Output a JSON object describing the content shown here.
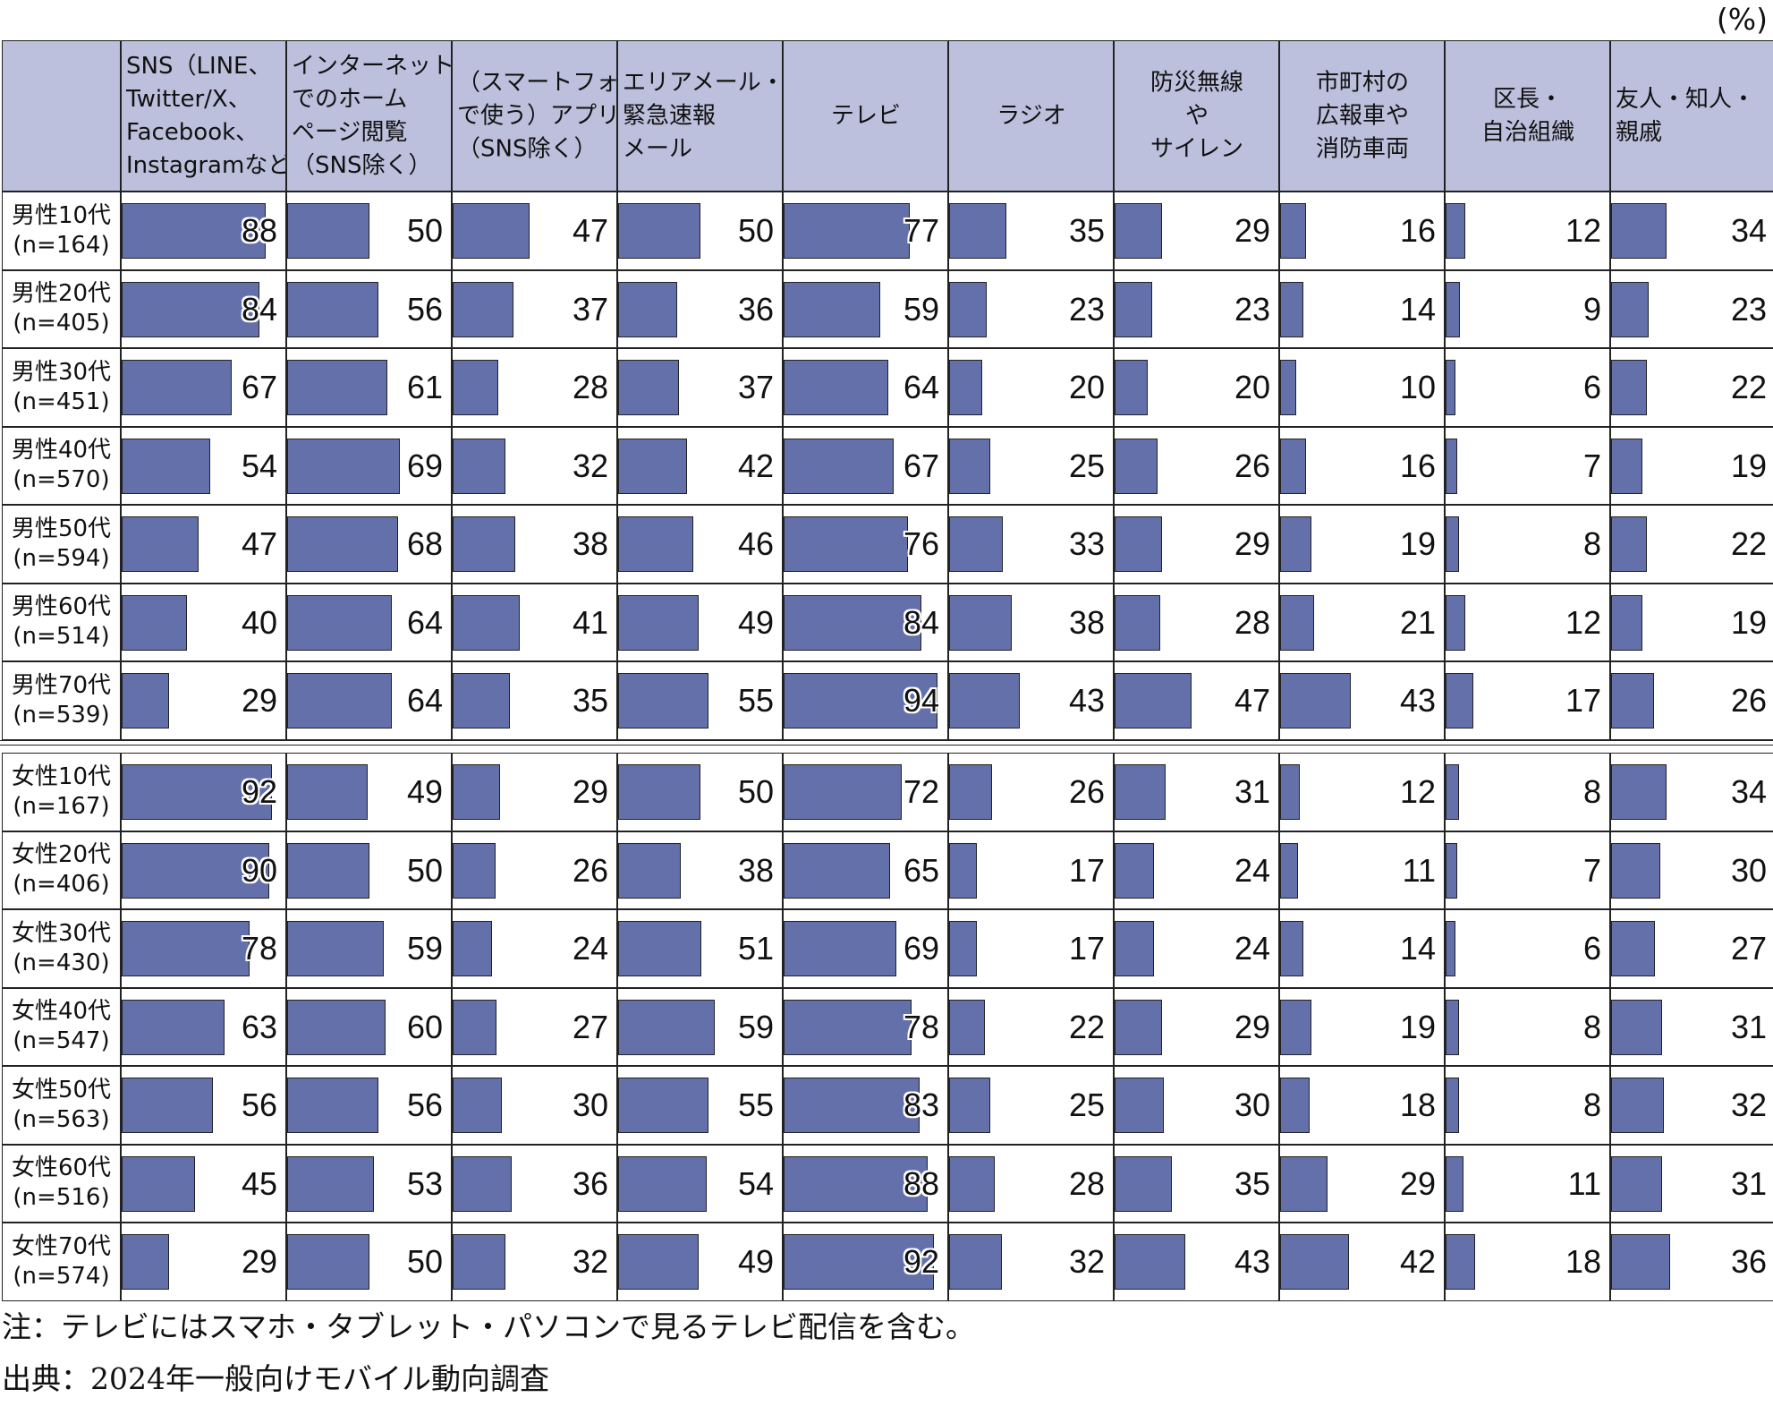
{
  "unit_label": "(%)",
  "notes": {
    "note": "注：テレビにはスマホ・タブレット・パソコンで見るテレビ配信を含む。",
    "source": "出典：2024年一般向けモバイル動向調査"
  },
  "colors": {
    "bar": "#6470a9",
    "header_bg": "#bcc0dc"
  },
  "chart_data": {
    "type": "table",
    "columns": [
      [
        "SNS（LINE、",
        "Twitter/X、",
        "Facebook、",
        "Instagramなど）"
      ],
      [
        "インターネット",
        "でのホーム",
        "ページ閲覧",
        "（SNS除く）"
      ],
      [
        "（スマートフォン",
        "で使う）アプリ",
        "（SNS除く）"
      ],
      [
        "エリアメール・",
        "緊急速報",
        "メール"
      ],
      [
        "テレビ"
      ],
      [
        "ラジオ"
      ],
      [
        "防災無線",
        "や",
        "サイレン"
      ],
      [
        "市町村の",
        "広報車や",
        "消防車両"
      ],
      [
        "区長・",
        "自治組織"
      ],
      [
        "友人・知人・",
        "親戚"
      ]
    ],
    "rows": [
      {
        "label": "男性10代",
        "n": "(n=164)",
        "values": [
          88,
          50,
          47,
          50,
          77,
          35,
          29,
          16,
          12,
          34
        ]
      },
      {
        "label": "男性20代",
        "n": "(n=405)",
        "values": [
          84,
          56,
          37,
          36,
          59,
          23,
          23,
          14,
          9,
          23
        ]
      },
      {
        "label": "男性30代",
        "n": "(n=451)",
        "values": [
          67,
          61,
          28,
          37,
          64,
          20,
          20,
          10,
          6,
          22
        ]
      },
      {
        "label": "男性40代",
        "n": "(n=570)",
        "values": [
          54,
          69,
          32,
          42,
          67,
          25,
          26,
          16,
          7,
          19
        ]
      },
      {
        "label": "男性50代",
        "n": "(n=594)",
        "values": [
          47,
          68,
          38,
          46,
          76,
          33,
          29,
          19,
          8,
          22
        ]
      },
      {
        "label": "男性60代",
        "n": "(n=514)",
        "values": [
          40,
          64,
          41,
          49,
          84,
          38,
          28,
          21,
          12,
          19
        ]
      },
      {
        "label": "男性70代",
        "n": "(n=539)",
        "values": [
          29,
          64,
          35,
          55,
          94,
          43,
          47,
          43,
          17,
          26
        ]
      },
      {
        "label": "女性10代",
        "n": "(n=167)",
        "values": [
          92,
          49,
          29,
          50,
          72,
          26,
          31,
          12,
          8,
          34
        ]
      },
      {
        "label": "女性20代",
        "n": "(n=406)",
        "values": [
          90,
          50,
          26,
          38,
          65,
          17,
          24,
          11,
          7,
          30
        ]
      },
      {
        "label": "女性30代",
        "n": "(n=430)",
        "values": [
          78,
          59,
          24,
          51,
          69,
          17,
          24,
          14,
          6,
          27
        ]
      },
      {
        "label": "女性40代",
        "n": "(n=547)",
        "values": [
          63,
          60,
          27,
          59,
          78,
          22,
          29,
          19,
          8,
          31
        ]
      },
      {
        "label": "女性50代",
        "n": "(n=563)",
        "values": [
          56,
          56,
          30,
          55,
          83,
          25,
          30,
          18,
          8,
          32
        ]
      },
      {
        "label": "女性60代",
        "n": "(n=516)",
        "values": [
          45,
          53,
          36,
          54,
          88,
          28,
          35,
          29,
          11,
          31
        ]
      },
      {
        "label": "女性70代",
        "n": "(n=574)",
        "values": [
          29,
          50,
          32,
          49,
          92,
          32,
          43,
          42,
          18,
          36
        ]
      }
    ],
    "value_range": [
      0,
      100
    ]
  }
}
